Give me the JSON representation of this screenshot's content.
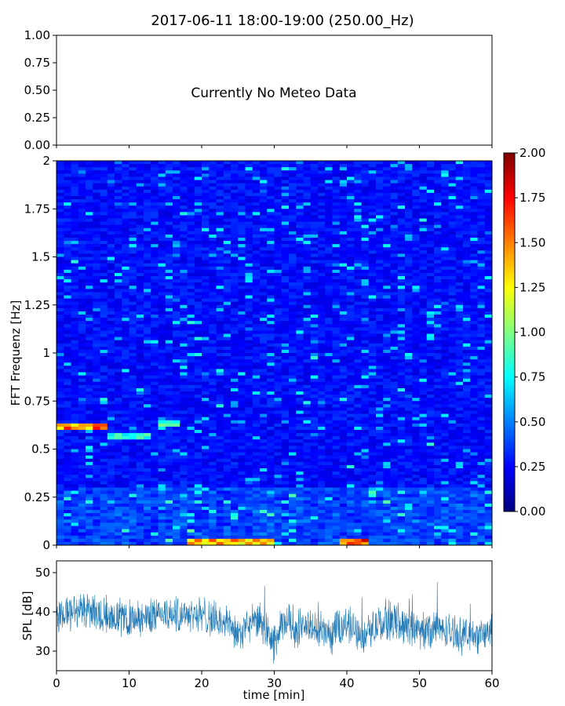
{
  "chart_data": [
    {
      "type": "line",
      "title": "2017-06-11 18:00-19:00 (250.00_Hz)",
      "annotation": "Currently No Meteo Data",
      "ylim": [
        0,
        1
      ],
      "y_tick_labels": [
        "1.00",
        "0.75",
        "0.50",
        "0.25",
        "0.00"
      ],
      "x_tick_labels": [],
      "series": []
    },
    {
      "type": "heatmap",
      "ylabel": "FFT Frequenz [Hz]",
      "xlim": [
        0,
        60
      ],
      "ylim": [
        0,
        2
      ],
      "y_tick_labels": [
        "2",
        "1.75",
        "1.5",
        "1.25",
        "1",
        "0.75",
        "0.5",
        "0.25",
        "0"
      ],
      "colorscale": "jet",
      "colorbar": {
        "range": [
          0,
          2
        ],
        "tick_labels": [
          "2.00",
          "1.75",
          "1.50",
          "1.25",
          "1.00",
          "0.75",
          "0.50",
          "0.25",
          "0.00"
        ]
      },
      "features": [
        {
          "x": [
            0,
            7
          ],
          "y": 0.61,
          "value": 1.6
        },
        {
          "x": [
            7,
            13
          ],
          "y": 0.56,
          "value": 0.9
        },
        {
          "x": [
            14,
            17
          ],
          "y": 0.63,
          "value": 1.0
        },
        {
          "x": [
            18,
            30
          ],
          "y": 0.02,
          "value": 1.5
        },
        {
          "x": [
            39,
            43
          ],
          "y": 0.02,
          "value": 1.7
        }
      ]
    },
    {
      "type": "line",
      "xlabel": "time [min]",
      "ylabel": "SPL [dB]",
      "xlim": [
        0,
        60
      ],
      "ylim": [
        25,
        53
      ],
      "x_tick_labels": [
        "0",
        "10",
        "20",
        "30",
        "40",
        "50",
        "60"
      ],
      "y_tick_labels": [
        "50",
        "40",
        "30"
      ],
      "series": [
        {
          "color": "#1f77b4",
          "x": [
            0,
            2,
            4,
            6,
            8,
            10,
            12,
            14,
            16,
            18,
            20,
            22,
            24,
            25,
            26,
            28,
            29,
            30,
            31,
            32,
            33,
            34,
            36,
            38,
            40,
            41,
            42,
            44,
            46,
            48,
            50,
            52,
            54,
            56,
            58,
            60
          ],
          "values": [
            39,
            40,
            41,
            40,
            39,
            38,
            38,
            40,
            39,
            40,
            39,
            38,
            37,
            33,
            36,
            38,
            34,
            32,
            36,
            38,
            35,
            37,
            35,
            34,
            37,
            36,
            34,
            36,
            38,
            37,
            35,
            36,
            35,
            34,
            34,
            35
          ]
        }
      ]
    }
  ]
}
